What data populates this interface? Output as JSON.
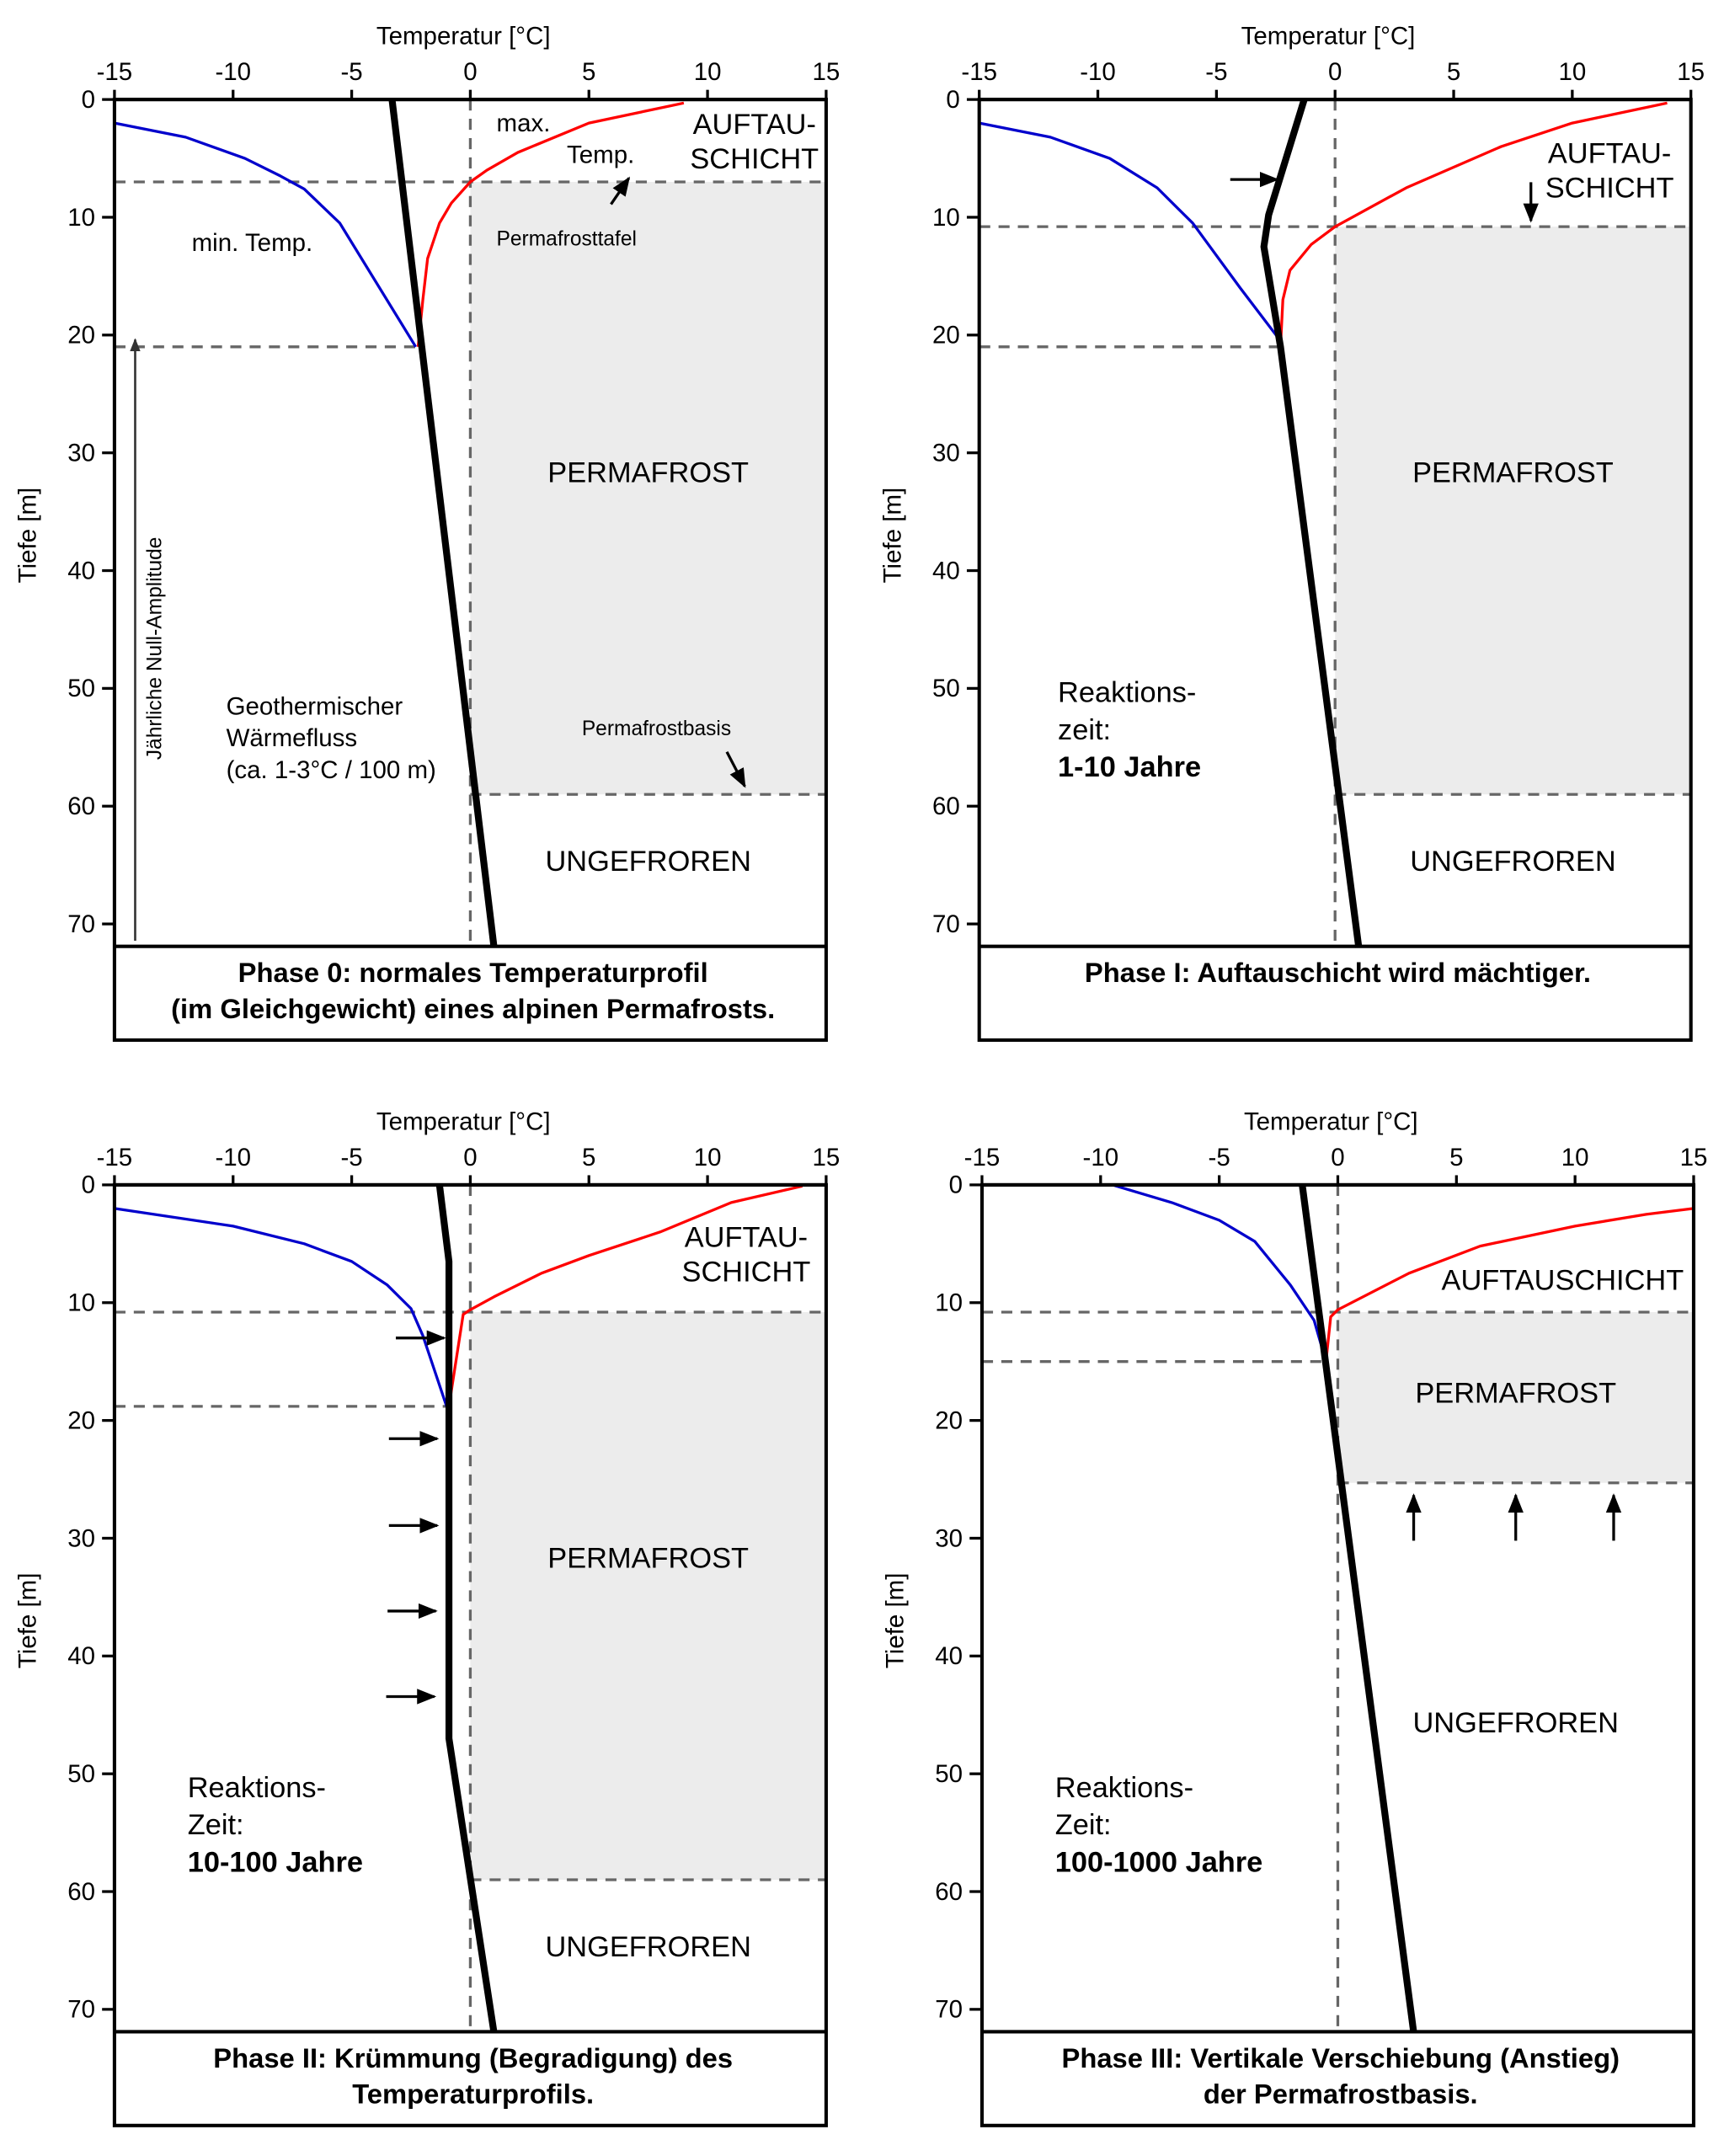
{
  "colors": {
    "min_temp": "#0000cc",
    "max_temp": "#ff0000",
    "geotherm": "#000000",
    "permafrost_fill": "#ececec",
    "dashed": "#666666"
  },
  "axes": {
    "x_title": "Temperatur [°C]",
    "y_title": "Tiefe [m]",
    "x_ticks": [
      -15,
      -10,
      -5,
      0,
      5,
      10,
      15
    ],
    "y_ticks": [
      0,
      10,
      20,
      30,
      40,
      50,
      60,
      70
    ],
    "xlim": [
      -15,
      15
    ],
    "ylim": [
      0,
      72
    ]
  },
  "chart_data": [
    {
      "type": "line",
      "panel": "phase-0",
      "caption": [
        "Phase 0: normales Temperaturprofil",
        "(im Gleichgewicht) eines alpinen Permafrosts."
      ],
      "permafrost_table_m": 7,
      "zero_amplitude_m": 21,
      "permafrost_base_m": 59,
      "series": [
        {
          "role": "min",
          "points": [
            [
              -15,
              2
            ],
            [
              -12,
              3.2
            ],
            [
              -9.5,
              5
            ],
            [
              -8,
              6.5
            ],
            [
              -7,
              7.6
            ],
            [
              -5.5,
              10.5
            ],
            [
              -2.3,
              21
            ]
          ]
        },
        {
          "role": "max",
          "points": [
            [
              9,
              0.3
            ],
            [
              5,
              2
            ],
            [
              2,
              4.5
            ],
            [
              0.7,
              6
            ],
            [
              0,
              7
            ],
            [
              -0.8,
              8.8
            ],
            [
              -1.3,
              10.5
            ],
            [
              -1.8,
              13.5
            ],
            [
              -2,
              17
            ],
            [
              -2.2,
              21
            ]
          ]
        },
        {
          "role": "geotherm",
          "points": [
            [
              -3.3,
              0
            ],
            [
              1,
              72
            ]
          ]
        }
      ],
      "labels": {
        "max": "max.",
        "temp": "Temp.",
        "min_temp": "min. Temp.",
        "active_layer": [
          "AUFTAU-",
          "SCHICHT"
        ],
        "permafrost_table": "Permafrosttafel",
        "permafrost": "PERMAFROST",
        "zero_amplitude": "Jährliche Null-Amplitude",
        "heat_flow": [
          "Geothermischer",
          "Wärmefluss",
          "(ca. 1-3°C / 100 m)"
        ],
        "permafrost_base": "Permafrostbasis",
        "unfrozen": "UNGEFROREN"
      }
    },
    {
      "type": "line",
      "panel": "phase-1",
      "caption": [
        "Phase I: Auftauschicht wird mächtiger."
      ],
      "permafrost_table_m": 10.8,
      "zero_amplitude_m": 21,
      "permafrost_base_m": 59,
      "series": [
        {
          "role": "min",
          "points": [
            [
              -15,
              2
            ],
            [
              -12,
              3.2
            ],
            [
              -9.5,
              5
            ],
            [
              -7.5,
              7.5
            ],
            [
              -6,
              10.5
            ],
            [
              -4,
              16
            ],
            [
              -2.3,
              20.5
            ]
          ]
        },
        {
          "role": "max",
          "points": [
            [
              14,
              0.3
            ],
            [
              10,
              2
            ],
            [
              7,
              4
            ],
            [
              3,
              7.5
            ],
            [
              0,
              10.8
            ],
            [
              -1,
              12.3
            ],
            [
              -1.9,
              14.5
            ],
            [
              -2.2,
              17
            ],
            [
              -2.3,
              21
            ]
          ]
        },
        {
          "role": "geotherm",
          "points": [
            [
              -1.3,
              0
            ],
            [
              -2.8,
              9.8
            ],
            [
              -3,
              12.5
            ],
            [
              -2.3,
              21
            ],
            [
              1,
              72
            ]
          ]
        }
      ],
      "labels": {
        "active_layer": [
          "AUFTAU-",
          "SCHICHT"
        ],
        "permafrost": "PERMAFROST",
        "reaction": [
          "Reaktions-",
          "zeit:",
          "1-10 Jahre"
        ],
        "unfrozen": "UNGEFROREN"
      }
    },
    {
      "type": "line",
      "panel": "phase-2",
      "caption": [
        "Phase II:  Krümmung (Begradigung) des",
        "Temperaturprofils."
      ],
      "permafrost_table_m": 10.8,
      "zero_amplitude_m": 18.8,
      "permafrost_base_m": 59,
      "series": [
        {
          "role": "min",
          "points": [
            [
              -15,
              2
            ],
            [
              -10,
              3.5
            ],
            [
              -7,
              5
            ],
            [
              -5,
              6.5
            ],
            [
              -3.5,
              8.5
            ],
            [
              -2.5,
              10.5
            ],
            [
              -2,
              12.8
            ],
            [
              -1,
              18.8
            ]
          ]
        },
        {
          "role": "max",
          "points": [
            [
              14,
              0.1
            ],
            [
              11,
              1.5
            ],
            [
              8,
              4
            ],
            [
              5,
              6
            ],
            [
              3,
              7.5
            ],
            [
              1,
              9.5
            ],
            [
              0,
              10.6
            ],
            [
              -0.3,
              11
            ],
            [
              -0.9,
              18.8
            ]
          ]
        },
        {
          "role": "geotherm",
          "points": [
            [
              -1.3,
              0
            ],
            [
              -0.9,
              6.5
            ],
            [
              -0.9,
              47
            ],
            [
              1,
              72
            ]
          ]
        }
      ],
      "labels": {
        "active_layer": [
          "AUFTAU-",
          "SCHICHT"
        ],
        "permafrost": "PERMAFROST",
        "reaction": [
          "Reaktions-",
          "Zeit:",
          "10-100 Jahre"
        ],
        "unfrozen": "UNGEFROREN"
      }
    },
    {
      "type": "line",
      "panel": "phase-3",
      "caption": [
        "Phase III: Vertikale Verschiebung (Anstieg)",
        "der Permafrostbasis."
      ],
      "permafrost_table_m": 10.8,
      "zero_amplitude_m": 15,
      "permafrost_base_m": 25.3,
      "series": [
        {
          "role": "min",
          "points": [
            [
              -9.5,
              0
            ],
            [
              -7,
              1.5
            ],
            [
              -5,
              3
            ],
            [
              -3.5,
              4.8
            ],
            [
              -2,
              8.5
            ],
            [
              -1,
              11.5
            ],
            [
              -0.5,
              15
            ]
          ]
        },
        {
          "role": "max",
          "points": [
            [
              15,
              2
            ],
            [
              13,
              2.5
            ],
            [
              10,
              3.5
            ],
            [
              6,
              5.2
            ],
            [
              3,
              7.5
            ],
            [
              0,
              10.6
            ],
            [
              -0.3,
              11.2
            ],
            [
              -0.5,
              15
            ]
          ]
        },
        {
          "role": "geotherm",
          "points": [
            [
              -1.5,
              0
            ],
            [
              3.2,
              72
            ]
          ]
        }
      ],
      "labels": {
        "active_layer": [
          "AUFTAUSCHICHT"
        ],
        "permafrost": "PERMAFROST",
        "reaction": [
          "Reaktions-",
          "Zeit:",
          "100-1000 Jahre"
        ],
        "unfrozen": "UNGEFROREN"
      }
    }
  ]
}
